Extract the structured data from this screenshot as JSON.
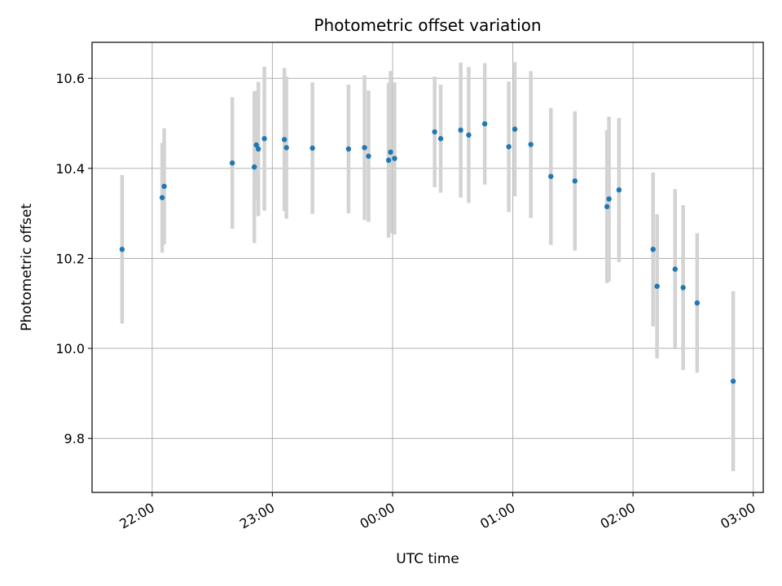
{
  "chart_data": {
    "type": "scatter",
    "title": "Photometric offset variation",
    "xlabel": "UTC time",
    "ylabel": "Photometric offset",
    "xlim": [
      "21:30",
      "03:05"
    ],
    "ylim": [
      9.68,
      10.68
    ],
    "xticks": [
      "22:00",
      "23:00",
      "00:00",
      "01:00",
      "02:00",
      "03:00"
    ],
    "yticks": [
      9.8,
      10.0,
      10.2,
      10.4,
      10.6
    ],
    "grid": true,
    "marker_color": "#1f77b4",
    "errorbar_color": "#d3d3d3",
    "points": [
      {
        "t": "21:45",
        "y": 10.22,
        "err": 0.165
      },
      {
        "t": "22:05",
        "y": 10.335,
        "err": 0.122
      },
      {
        "t": "22:06",
        "y": 10.36,
        "err": 0.129
      },
      {
        "t": "22:40",
        "y": 10.412,
        "err": 0.146
      },
      {
        "t": "22:51",
        "y": 10.403,
        "err": 0.169
      },
      {
        "t": "22:52",
        "y": 10.452,
        "err": 0.12
      },
      {
        "t": "22:53",
        "y": 10.443,
        "err": 0.149
      },
      {
        "t": "22:56",
        "y": 10.466,
        "err": 0.16
      },
      {
        "t": "23:06",
        "y": 10.464,
        "err": 0.159
      },
      {
        "t": "23:07",
        "y": 10.446,
        "err": 0.158
      },
      {
        "t": "23:20",
        "y": 10.445,
        "err": 0.146
      },
      {
        "t": "23:38",
        "y": 10.443,
        "err": 0.143
      },
      {
        "t": "23:46",
        "y": 10.446,
        "err": 0.161
      },
      {
        "t": "23:48",
        "y": 10.427,
        "err": 0.146
      },
      {
        "t": "23:59",
        "y": 10.436,
        "err": 0.18
      },
      {
        "t": "23:58",
        "y": 10.418,
        "err": 0.172
      },
      {
        "t": "00:01",
        "y": 10.422,
        "err": 0.169
      },
      {
        "t": "00:21",
        "y": 10.481,
        "err": 0.123
      },
      {
        "t": "00:24",
        "y": 10.466,
        "err": 0.12
      },
      {
        "t": "00:34",
        "y": 10.485,
        "err": 0.15
      },
      {
        "t": "00:38",
        "y": 10.474,
        "err": 0.151
      },
      {
        "t": "00:46",
        "y": 10.499,
        "err": 0.135
      },
      {
        "t": "00:58",
        "y": 10.448,
        "err": 0.145
      },
      {
        "t": "01:01",
        "y": 10.487,
        "err": 0.149
      },
      {
        "t": "01:09",
        "y": 10.453,
        "err": 0.163
      },
      {
        "t": "01:19",
        "y": 10.382,
        "err": 0.152
      },
      {
        "t": "01:31",
        "y": 10.372,
        "err": 0.155
      },
      {
        "t": "01:47",
        "y": 10.315,
        "err": 0.17
      },
      {
        "t": "01:48",
        "y": 10.332,
        "err": 0.183
      },
      {
        "t": "01:53",
        "y": 10.352,
        "err": 0.16
      },
      {
        "t": "02:10",
        "y": 10.22,
        "err": 0.171
      },
      {
        "t": "02:12",
        "y": 10.138,
        "err": 0.16
      },
      {
        "t": "02:21",
        "y": 10.176,
        "err": 0.178
      },
      {
        "t": "02:25",
        "y": 10.135,
        "err": 0.183
      },
      {
        "t": "02:32",
        "y": 10.101,
        "err": 0.155
      },
      {
        "t": "02:50",
        "y": 9.927,
        "err": 0.2
      }
    ]
  }
}
